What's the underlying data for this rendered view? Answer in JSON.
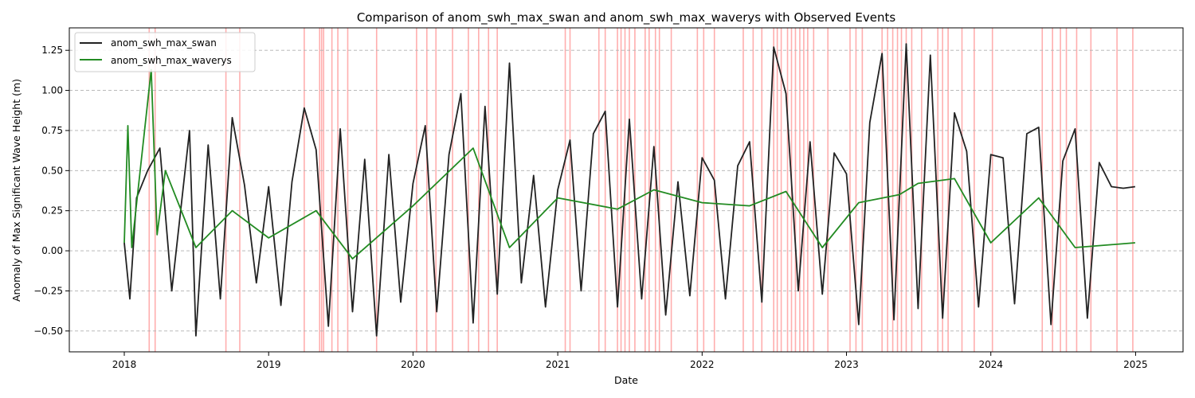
{
  "chart_data": {
    "type": "line",
    "title": "Comparison of anom_swh_max_swan and anom_swh_max_waverys with Observed Events",
    "xlabel": "Date",
    "ylabel": "Anomaly of Max Significant Wave Height (m)",
    "xlim": [
      "2017-08-15",
      "2025-05-01"
    ],
    "ylim": [
      -0.63,
      1.39
    ],
    "x_ticks": [
      "2018",
      "2019",
      "2020",
      "2021",
      "2022",
      "2023",
      "2024",
      "2025"
    ],
    "y_ticks": [
      -0.5,
      -0.25,
      0.0,
      0.25,
      0.5,
      0.75,
      1.0,
      1.25
    ],
    "y_tick_labels": [
      "−0.50",
      "−0.25",
      "0.00",
      "0.25",
      "0.50",
      "0.75",
      "1.00",
      "1.25"
    ],
    "grid": "y-dashed",
    "legend_position": "top-left",
    "colors": {
      "swan": "#222222",
      "waverys": "#228b22",
      "events": "#ff6b6b"
    },
    "series": [
      {
        "name": "anom_swh_max_swan",
        "color": "#222222",
        "x": [
          "2018-01-01",
          "2018-01-15",
          "2018-02-01",
          "2018-03-01",
          "2018-04-01",
          "2018-05-01",
          "2018-06-15",
          "2018-07-01",
          "2018-08-01",
          "2018-09-01",
          "2018-10-01",
          "2018-11-01",
          "2018-12-01",
          "2019-01-01",
          "2019-02-01",
          "2019-03-01",
          "2019-04-01",
          "2019-05-01",
          "2019-06-01",
          "2019-07-01",
          "2019-08-01",
          "2019-09-01",
          "2019-10-01",
          "2019-11-01",
          "2019-12-01",
          "2020-01-01",
          "2020-02-01",
          "2020-03-01",
          "2020-04-01",
          "2020-05-01",
          "2020-06-01",
          "2020-07-01",
          "2020-08-01",
          "2020-09-01",
          "2020-10-01",
          "2020-11-01",
          "2020-12-01",
          "2021-01-01",
          "2021-02-01",
          "2021-03-01",
          "2021-04-01",
          "2021-05-01",
          "2021-06-01",
          "2021-07-01",
          "2021-08-01",
          "2021-09-01",
          "2021-10-01",
          "2021-11-01",
          "2021-12-01",
          "2022-01-01",
          "2022-02-01",
          "2022-03-01",
          "2022-04-01",
          "2022-05-01",
          "2022-06-01",
          "2022-07-01",
          "2022-08-01",
          "2022-09-01",
          "2022-10-01",
          "2022-11-01",
          "2022-12-01",
          "2023-01-01",
          "2023-02-01",
          "2023-03-01",
          "2023-04-01",
          "2023-05-01",
          "2023-06-01",
          "2023-07-01",
          "2023-08-01",
          "2023-09-01",
          "2023-10-01",
          "2023-11-01",
          "2023-12-01",
          "2024-01-01",
          "2024-02-01",
          "2024-03-01",
          "2024-04-01",
          "2024-05-01",
          "2024-06-01",
          "2024-07-01",
          "2024-08-01",
          "2024-09-01",
          "2024-10-01",
          "2024-11-01",
          "2024-12-01",
          "2024-12-31"
        ],
        "values": [
          0.05,
          -0.3,
          0.33,
          0.5,
          0.64,
          -0.25,
          0.75,
          -0.53,
          0.66,
          -0.3,
          0.83,
          0.41,
          -0.2,
          0.4,
          -0.34,
          0.43,
          0.89,
          0.63,
          -0.47,
          0.76,
          -0.38,
          0.57,
          -0.53,
          0.6,
          -0.32,
          0.42,
          0.78,
          -0.38,
          0.6,
          0.98,
          -0.45,
          0.9,
          -0.27,
          1.17,
          -0.2,
          0.47,
          -0.35,
          0.38,
          0.69,
          -0.25,
          0.73,
          0.87,
          -0.35,
          0.82,
          -0.3,
          0.65,
          -0.4,
          0.43,
          -0.28,
          0.58,
          0.44,
          -0.3,
          0.53,
          0.68,
          -0.32,
          1.27,
          0.98,
          -0.25,
          0.68,
          -0.27,
          0.61,
          0.48,
          -0.46,
          0.8,
          1.23,
          -0.43,
          1.29,
          -0.36,
          1.22,
          -0.42,
          0.86,
          0.62,
          -0.35,
          0.6,
          0.58,
          -0.33,
          0.73,
          0.77,
          -0.46,
          0.56,
          0.76,
          -0.42,
          0.55,
          0.4,
          0.39,
          0.4
        ]
      },
      {
        "name": "anom_swh_max_waverys",
        "color": "#228b22",
        "x": [
          "2018-01-01",
          "2018-01-10",
          "2018-01-20",
          "2018-03-10",
          "2018-03-25",
          "2018-04-15",
          "2018-07-01",
          "2018-10-01",
          "2019-01-01",
          "2019-05-01",
          "2019-08-01",
          "2020-01-01",
          "2020-06-01",
          "2020-09-01",
          "2021-01-01",
          "2021-06-01",
          "2021-09-01",
          "2022-01-01",
          "2022-05-01",
          "2022-08-01",
          "2022-11-01",
          "2023-02-01",
          "2023-05-15",
          "2023-07-01",
          "2023-10-01",
          "2024-01-01",
          "2024-05-01",
          "2024-08-01",
          "2024-12-31"
        ],
        "values": [
          0.05,
          0.78,
          0.02,
          1.13,
          0.1,
          0.5,
          0.02,
          0.25,
          0.08,
          0.25,
          -0.05,
          0.28,
          0.64,
          0.02,
          0.33,
          0.26,
          0.38,
          0.3,
          0.28,
          0.37,
          0.02,
          0.3,
          0.35,
          0.42,
          0.45,
          0.05,
          0.33,
          0.02,
          0.05
        ]
      }
    ],
    "observed_events": [
      "2018-03-05",
      "2018-03-20",
      "2018-09-15",
      "2018-10-20",
      "2019-04-01",
      "2019-05-10",
      "2019-05-15",
      "2019-05-20",
      "2019-06-10",
      "2019-06-25",
      "2019-07-20",
      "2019-10-01",
      "2020-01-10",
      "2020-02-05",
      "2020-02-28",
      "2020-04-10",
      "2020-05-20",
      "2020-06-15",
      "2020-07-10",
      "2020-08-01",
      "2021-01-20",
      "2021-02-01",
      "2021-04-15",
      "2021-05-01",
      "2021-06-01",
      "2021-06-10",
      "2021-06-20",
      "2021-07-01",
      "2021-07-15",
      "2021-08-10",
      "2021-08-20",
      "2021-09-05",
      "2021-09-15",
      "2021-10-15",
      "2021-12-20",
      "2022-01-05",
      "2022-02-01",
      "2022-04-15",
      "2022-05-10",
      "2022-06-01",
      "2022-07-01",
      "2022-07-10",
      "2022-07-20",
      "2022-08-05",
      "2022-08-15",
      "2022-08-25",
      "2022-09-05",
      "2022-09-15",
      "2022-09-25",
      "2022-10-10",
      "2022-11-15",
      "2023-01-10",
      "2023-01-25",
      "2023-02-10",
      "2023-04-01",
      "2023-04-15",
      "2023-04-28",
      "2023-05-10",
      "2023-05-20",
      "2023-06-01",
      "2023-06-15",
      "2023-07-10",
      "2023-08-20",
      "2023-09-01",
      "2023-09-15",
      "2023-10-20",
      "2023-11-20",
      "2024-01-05",
      "2024-05-10",
      "2024-06-05",
      "2024-06-25",
      "2024-07-10",
      "2024-08-05",
      "2024-09-10",
      "2024-11-15",
      "2024-12-25"
    ]
  }
}
